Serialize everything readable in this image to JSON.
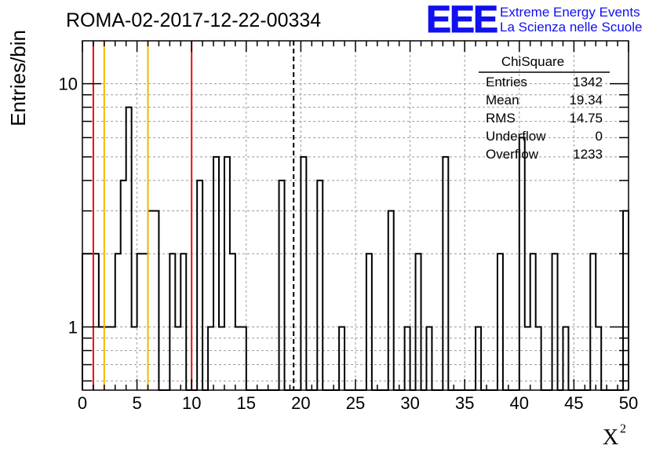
{
  "title": "ROMA-02-2017-12-22-00334",
  "logo": {
    "letters": "EEE",
    "line1": "Extreme Energy Events",
    "line2": "La Scienza nelle Scuole",
    "color": "#1010f0"
  },
  "stats": {
    "name": "ChiSquare",
    "rows": [
      {
        "label": "Entries",
        "value": "1342"
      },
      {
        "label": "Mean",
        "value": "19.34"
      },
      {
        "label": "RMS",
        "value": "14.75"
      },
      {
        "label": "Underflow",
        "value": "0"
      },
      {
        "label": "Overflow",
        "value": "1233"
      }
    ]
  },
  "chart_data": {
    "type": "bar",
    "histogram": true,
    "xlabel": "X",
    "xlabel_superscript": "2",
    "ylabel": "Entries/bin",
    "xlim": [
      0,
      50
    ],
    "ylim": [
      0.55,
      15
    ],
    "yscale": "log",
    "grid": true,
    "bin_width": 0.5,
    "x_ticks": [
      0,
      5,
      10,
      15,
      20,
      25,
      30,
      35,
      40,
      45,
      50
    ],
    "x_tick_labels": [
      "0",
      "5",
      "10",
      "15",
      "20",
      "25",
      "30",
      "35",
      "40",
      "45",
      "50"
    ],
    "y_ticks": [
      1,
      10
    ],
    "y_tick_labels": [
      "1",
      "10"
    ],
    "bins": [
      {
        "x": 0.25,
        "value": 2
      },
      {
        "x": 0.75,
        "value": 2
      },
      {
        "x": 1.25,
        "value": 2
      },
      {
        "x": 1.75,
        "value": 1
      },
      {
        "x": 2.25,
        "value": 1
      },
      {
        "x": 2.75,
        "value": 1
      },
      {
        "x": 3.25,
        "value": 2
      },
      {
        "x": 3.75,
        "value": 4
      },
      {
        "x": 4.25,
        "value": 8
      },
      {
        "x": 4.75,
        "value": 1
      },
      {
        "x": 5.25,
        "value": 2
      },
      {
        "x": 5.75,
        "value": 2
      },
      {
        "x": 6.25,
        "value": 3
      },
      {
        "x": 6.75,
        "value": 3
      },
      {
        "x": 7.25,
        "value": 0
      },
      {
        "x": 7.75,
        "value": 0
      },
      {
        "x": 8.25,
        "value": 2
      },
      {
        "x": 8.75,
        "value": 1
      },
      {
        "x": 9.25,
        "value": 2
      },
      {
        "x": 9.75,
        "value": 0
      },
      {
        "x": 10.25,
        "value": 0
      },
      {
        "x": 10.75,
        "value": 4
      },
      {
        "x": 11.25,
        "value": 0
      },
      {
        "x": 11.75,
        "value": 1
      },
      {
        "x": 12.25,
        "value": 5
      },
      {
        "x": 12.75,
        "value": 1
      },
      {
        "x": 13.25,
        "value": 5
      },
      {
        "x": 13.75,
        "value": 2
      },
      {
        "x": 14.25,
        "value": 1
      },
      {
        "x": 14.75,
        "value": 1
      },
      {
        "x": 15.25,
        "value": 0
      },
      {
        "x": 15.75,
        "value": 0
      },
      {
        "x": 16.25,
        "value": 0
      },
      {
        "x": 16.75,
        "value": 0
      },
      {
        "x": 17.25,
        "value": 0
      },
      {
        "x": 17.75,
        "value": 0
      },
      {
        "x": 18.25,
        "value": 4
      },
      {
        "x": 18.75,
        "value": 0
      },
      {
        "x": 19.25,
        "value": 0
      },
      {
        "x": 19.75,
        "value": 0
      },
      {
        "x": 20.25,
        "value": 5
      },
      {
        "x": 20.75,
        "value": 0
      },
      {
        "x": 21.25,
        "value": 0
      },
      {
        "x": 21.75,
        "value": 4
      },
      {
        "x": 22.25,
        "value": 0
      },
      {
        "x": 22.75,
        "value": 0
      },
      {
        "x": 23.25,
        "value": 0
      },
      {
        "x": 23.75,
        "value": 1
      },
      {
        "x": 24.25,
        "value": 0
      },
      {
        "x": 24.75,
        "value": 0
      },
      {
        "x": 25.25,
        "value": 0
      },
      {
        "x": 25.75,
        "value": 0
      },
      {
        "x": 26.25,
        "value": 2
      },
      {
        "x": 26.75,
        "value": 0
      },
      {
        "x": 27.25,
        "value": 0
      },
      {
        "x": 27.75,
        "value": 0
      },
      {
        "x": 28.25,
        "value": 3
      },
      {
        "x": 28.75,
        "value": 0
      },
      {
        "x": 29.25,
        "value": 0
      },
      {
        "x": 29.75,
        "value": 1
      },
      {
        "x": 30.25,
        "value": 0
      },
      {
        "x": 30.75,
        "value": 2
      },
      {
        "x": 31.25,
        "value": 0
      },
      {
        "x": 31.75,
        "value": 1
      },
      {
        "x": 32.25,
        "value": 0
      },
      {
        "x": 32.75,
        "value": 0
      },
      {
        "x": 33.25,
        "value": 5
      },
      {
        "x": 33.75,
        "value": 0
      },
      {
        "x": 34.25,
        "value": 0
      },
      {
        "x": 34.75,
        "value": 0
      },
      {
        "x": 35.25,
        "value": 0
      },
      {
        "x": 35.75,
        "value": 0
      },
      {
        "x": 36.25,
        "value": 1
      },
      {
        "x": 36.75,
        "value": 0
      },
      {
        "x": 37.25,
        "value": 0
      },
      {
        "x": 37.75,
        "value": 0
      },
      {
        "x": 38.25,
        "value": 2
      },
      {
        "x": 38.75,
        "value": 0
      },
      {
        "x": 39.25,
        "value": 0
      },
      {
        "x": 39.75,
        "value": 0
      },
      {
        "x": 40.25,
        "value": 6
      },
      {
        "x": 40.75,
        "value": 1
      },
      {
        "x": 41.25,
        "value": 2
      },
      {
        "x": 41.75,
        "value": 1
      },
      {
        "x": 42.25,
        "value": 0
      },
      {
        "x": 42.75,
        "value": 0
      },
      {
        "x": 43.25,
        "value": 2
      },
      {
        "x": 43.75,
        "value": 0
      },
      {
        "x": 44.25,
        "value": 1
      },
      {
        "x": 44.75,
        "value": 0
      },
      {
        "x": 45.25,
        "value": 0
      },
      {
        "x": 45.75,
        "value": 0
      },
      {
        "x": 46.25,
        "value": 0
      },
      {
        "x": 46.75,
        "value": 2
      },
      {
        "x": 47.25,
        "value": 1
      },
      {
        "x": 47.75,
        "value": 0
      },
      {
        "x": 48.25,
        "value": 0
      },
      {
        "x": 48.75,
        "value": 0
      },
      {
        "x": 49.25,
        "value": 0
      },
      {
        "x": 49.75,
        "value": 3
      }
    ],
    "reference_lines": [
      {
        "x": 1,
        "color": "#e01010",
        "style": "solid"
      },
      {
        "x": 2,
        "color": "#f0b800",
        "style": "solid"
      },
      {
        "x": 6,
        "color": "#f0b800",
        "style": "solid"
      },
      {
        "x": 10,
        "color": "#e01010",
        "style": "solid"
      },
      {
        "x": 19.34,
        "color": "#000000",
        "style": "dashed"
      }
    ]
  }
}
